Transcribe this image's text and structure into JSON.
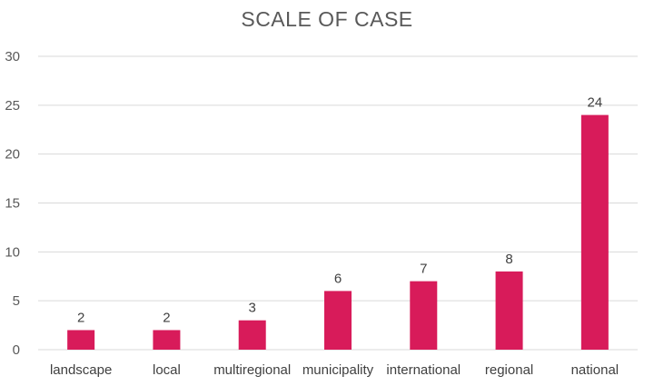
{
  "chart_data": {
    "type": "bar",
    "title": "SCALE OF CASE",
    "xlabel": "",
    "ylabel": "",
    "categories": [
      "landscape",
      "local",
      "multiregional",
      "municipality",
      "international",
      "regional",
      "national"
    ],
    "values": [
      2,
      2,
      3,
      6,
      7,
      8,
      24
    ],
    "data_labels": [
      "2",
      "2",
      "3",
      "6",
      "7",
      "8",
      "24"
    ],
    "ylim": [
      0,
      30
    ],
    "yticks": [
      0,
      5,
      10,
      15,
      20,
      25,
      30
    ],
    "ytick_labels": [
      "0",
      "5",
      "10",
      "15",
      "20",
      "25",
      "30"
    ],
    "grid": true,
    "legend": "none",
    "bar_color": "#d81b5a",
    "grid_color": "#d9d9d9"
  }
}
